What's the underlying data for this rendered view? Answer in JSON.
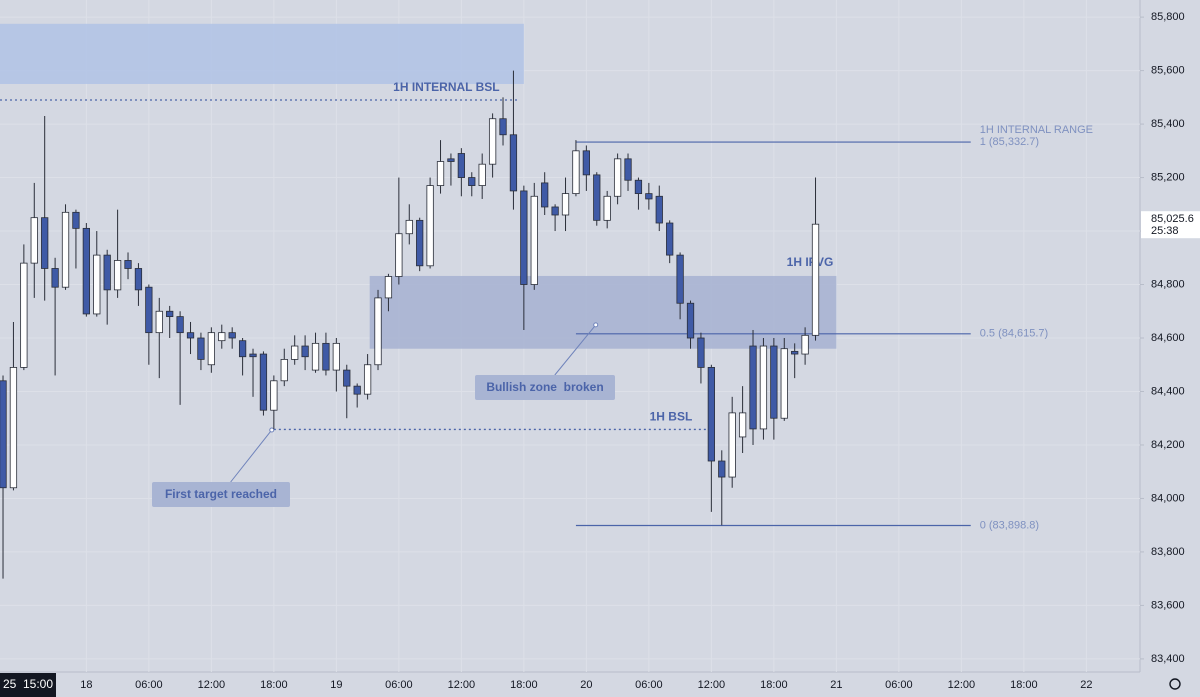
{
  "chart_data": {
    "type": "candlestick",
    "open": [
      84440,
      84040,
      84490,
      84880,
      85050,
      84860,
      84790,
      85070,
      85010,
      84690,
      84910,
      84780,
      84890,
      84860,
      84790,
      84620,
      84700,
      84680,
      84620,
      84600,
      84500,
      84590,
      84620,
      84590,
      84540,
      84540,
      84330,
      84440,
      84520,
      84570,
      84480,
      84580,
      84480,
      84480,
      84420,
      84390,
      84500,
      84750,
      84830,
      84990,
      85040,
      84870,
      85170,
      85270,
      85290,
      85200,
      85170,
      85250,
      85420,
      85360,
      85150,
      84800,
      85180,
      85090,
      85060,
      85140,
      85300,
      85210,
      85040,
      85130,
      85270,
      85190,
      85140,
      85130,
      85030,
      84910,
      84730,
      84600,
      84490,
      84140,
      84080,
      84230,
      84570,
      84260,
      84570,
      84300,
      84550,
      84540,
      84610
    ],
    "high": [
      84460,
      84660,
      84950,
      85180,
      85430,
      84900,
      85100,
      85080,
      85030,
      85000,
      84930,
      85080,
      84920,
      84880,
      84800,
      84750,
      84720,
      84700,
      84660,
      84620,
      84640,
      84650,
      84640,
      84600,
      84560,
      84550,
      84460,
      84560,
      84610,
      84610,
      84620,
      84620,
      84600,
      84500,
      84430,
      84540,
      84780,
      84840,
      85200,
      85100,
      85050,
      85200,
      85340,
      85290,
      85310,
      85220,
      85290,
      85440,
      85500,
      85600,
      85170,
      85180,
      85220,
      85100,
      85200,
      85340,
      85320,
      85220,
      85150,
      85290,
      85290,
      85200,
      85180,
      85170,
      85040,
      84920,
      84740,
      84620,
      84500,
      84180,
      84380,
      84420,
      84630,
      84600,
      84600,
      84600,
      84580,
      84640,
      85200
    ],
    "low": [
      83700,
      84030,
      84480,
      84750,
      84740,
      84460,
      84780,
      84860,
      84680,
      84680,
      84650,
      84750,
      84820,
      84720,
      84500,
      84450,
      84600,
      84350,
      84540,
      84480,
      84470,
      84560,
      84560,
      84460,
      84380,
      84310,
      84260,
      84420,
      84500,
      84480,
      84470,
      84460,
      84400,
      84300,
      84340,
      84370,
      84480,
      84700,
      84800,
      84950,
      84850,
      84860,
      85140,
      85170,
      85130,
      85130,
      85120,
      85200,
      85320,
      85080,
      84630,
      84780,
      85060,
      85000,
      85000,
      85130,
      85150,
      85020,
      85010,
      85100,
      85150,
      85080,
      85080,
      85000,
      84880,
      84670,
      84560,
      84430,
      83950,
      83900,
      84040,
      84170,
      84200,
      84220,
      84220,
      84290,
      84450,
      84500,
      84590
    ],
    "close": [
      84040,
      84490,
      84880,
      85050,
      84860,
      84790,
      85070,
      85010,
      84690,
      84910,
      84780,
      84890,
      84860,
      84780,
      84620,
      84700,
      84680,
      84620,
      84600,
      84520,
      84620,
      84620,
      84600,
      84530,
      84530,
      84330,
      84440,
      84520,
      84570,
      84530,
      84580,
      84480,
      84580,
      84420,
      84390,
      84500,
      84750,
      84830,
      84990,
      85040,
      84870,
      85170,
      85260,
      85260,
      85200,
      85170,
      85250,
      85420,
      85360,
      85150,
      84800,
      85130,
      85090,
      85060,
      85140,
      85300,
      85210,
      85040,
      85130,
      85270,
      85190,
      85140,
      85120,
      85030,
      84910,
      84730,
      84600,
      84490,
      84140,
      84080,
      84320,
      84320,
      84260,
      84570,
      84300,
      84560,
      84540,
      84610,
      85025.6
    ],
    "up_color": "#ffffff",
    "down_color": "#3f5aa6",
    "wick_color": "#2a2e39",
    "xlim": [
      -0.29,
      109.15
    ],
    "ylim": [
      83351,
      85864
    ],
    "grid": true,
    "yticks": [
      {
        "value": 83400,
        "label": "83,400"
      },
      {
        "value": 83600,
        "label": "83,600"
      },
      {
        "value": 83800,
        "label": "83,800"
      },
      {
        "value": 84000,
        "label": "84,000"
      },
      {
        "value": 84200,
        "label": "84,200"
      },
      {
        "value": 84400,
        "label": "84,400"
      },
      {
        "value": 84600,
        "label": "84,600"
      },
      {
        "value": 84800,
        "label": "84,800"
      },
      {
        "value": 85000,
        "label": "85,000"
      },
      {
        "value": 85200,
        "label": "85,200"
      },
      {
        "value": 85400,
        "label": "85,400"
      },
      {
        "value": 85600,
        "label": "85,600"
      },
      {
        "value": 85800,
        "label": "85,800"
      }
    ],
    "xticks": [
      {
        "value": 8,
        "label": "18"
      },
      {
        "value": 14,
        "label": "06:00"
      },
      {
        "value": 20,
        "label": "12:00"
      },
      {
        "value": 26,
        "label": "18:00"
      },
      {
        "value": 32,
        "label": "19"
      },
      {
        "value": 38,
        "label": "06:00"
      },
      {
        "value": 44,
        "label": "12:00"
      },
      {
        "value": 50,
        "label": "18:00"
      },
      {
        "value": 56,
        "label": "20"
      },
      {
        "value": 62,
        "label": "06:00"
      },
      {
        "value": 68,
        "label": "12:00"
      },
      {
        "value": 74,
        "label": "18:00"
      },
      {
        "value": 80,
        "label": "21"
      },
      {
        "value": 86,
        "label": "06:00"
      },
      {
        "value": 92,
        "label": "12:00"
      },
      {
        "value": 98,
        "label": "18:00"
      },
      {
        "value": 104,
        "label": "22"
      }
    ],
    "cursor_time_label": "25  15:00",
    "last_price": {
      "value": 85025.6,
      "label": "85,025.6"
    },
    "countdown": "25:38",
    "zones": [
      {
        "x": [
          -0.3,
          50
        ],
        "y": [
          85550,
          85775
        ]
      },
      {
        "x": [
          35.2,
          80
        ],
        "y": [
          84560,
          84832
        ],
        "label": "1H IFVG"
      }
    ],
    "levels": [
      {
        "label": "1H INTERNAL BSL",
        "value": 85490,
        "x": [
          -0.3,
          49.4
        ]
      },
      {
        "label": "1H BSL",
        "value": 84258,
        "x": [
          26,
          67.9
        ]
      }
    ],
    "fib": {
      "title": "1H INTERNAL RANGE",
      "x": [
        55,
        92.9
      ],
      "levels": [
        {
          "value": 85332.7,
          "label": "1 (85,332.7)"
        },
        {
          "value": 84615.7,
          "label": "0.5 (84,615.7)"
        },
        {
          "value": 83898.8,
          "label": "0 (83,898.8)"
        }
      ]
    },
    "callouts": [
      {
        "text": "Bullish zone  broken",
        "anchor": [
          56.9,
          84649
        ]
      },
      {
        "text": "First target reached",
        "anchor": [
          25.8,
          84256
        ]
      }
    ]
  }
}
